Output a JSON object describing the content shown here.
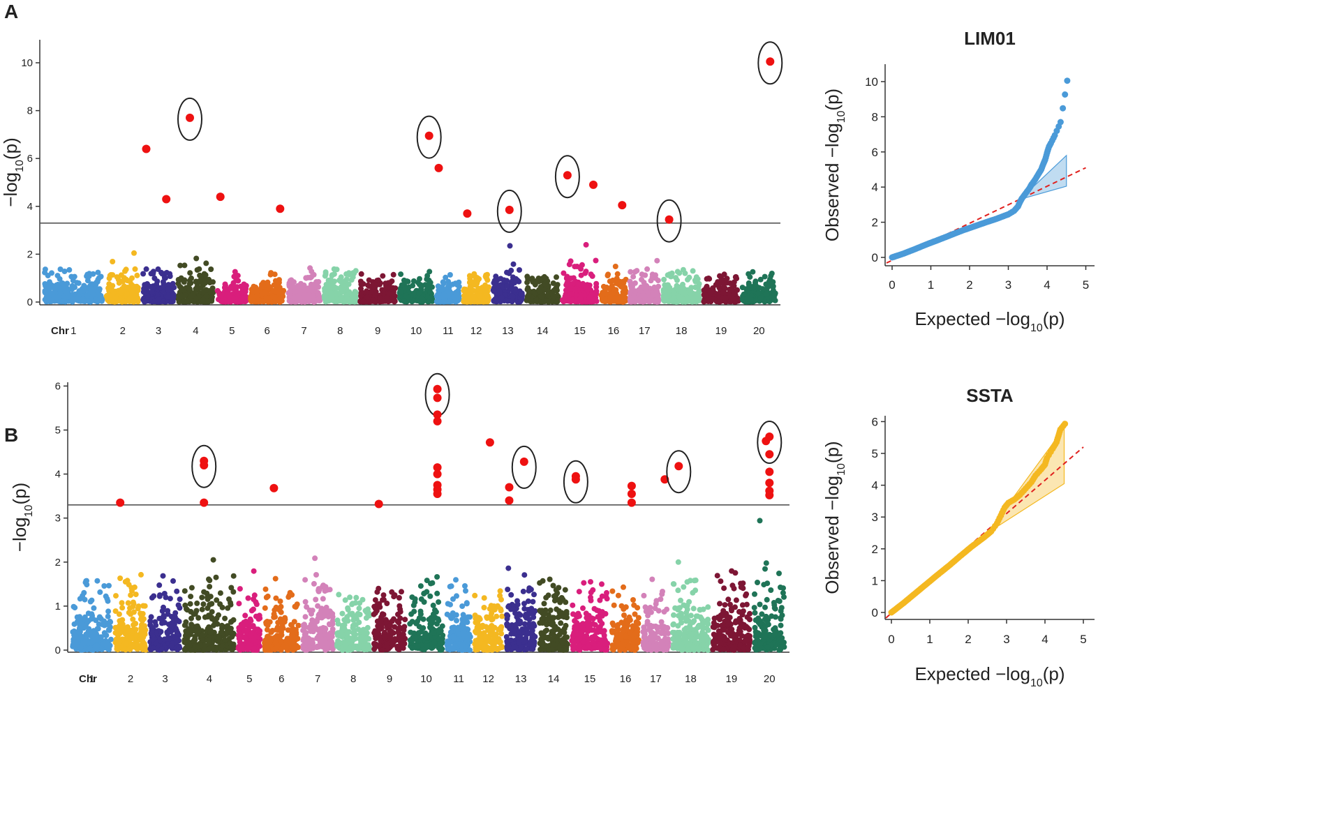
{
  "threshold": 3.3,
  "colors": {
    "chromosomes": [
      "#4a9ad8",
      "#f4b821",
      "#3b2f8f",
      "#424b24",
      "#d91e7c",
      "#e36c1a",
      "#d382b9",
      "#86d3a9",
      "#7d1634",
      "#1f7457"
    ],
    "signal": "#ee1111",
    "threshold_line": "#555555",
    "circle": "#222222",
    "qq_ref_line": "#e0201d"
  },
  "panels": [
    {
      "letter": "A",
      "ylabel": "−log10(p)",
      "chr_axis_label": "Chr",
      "chromosomes": [
        "1",
        "2",
        "3",
        "4",
        "5",
        "6",
        "7",
        "8",
        "9",
        "10",
        "11",
        "12",
        "13",
        "14",
        "15",
        "16",
        "17",
        "18",
        "19",
        "20"
      ],
      "y_ticks": [
        "0",
        "2",
        "4",
        "6",
        "8",
        "10"
      ],
      "ylim": [
        0,
        11
      ],
      "significant": [
        {
          "chr": 3,
          "pos": 0.15,
          "value": 6.4,
          "circled": false
        },
        {
          "chr": 3,
          "pos": 0.72,
          "value": 4.3,
          "circled": false
        },
        {
          "chr": 4,
          "pos": 0.35,
          "value": 7.7,
          "circled": true
        },
        {
          "chr": 5,
          "pos": 0.15,
          "value": 4.4,
          "circled": false
        },
        {
          "chr": 6,
          "pos": 0.85,
          "value": 3.9,
          "circled": false
        },
        {
          "chr": 10,
          "pos": 0.85,
          "value": 6.95,
          "circled": true
        },
        {
          "chr": 11,
          "pos": 0.15,
          "value": 5.6,
          "circled": false
        },
        {
          "chr": 12,
          "pos": 0.2,
          "value": 3.7,
          "circled": false
        },
        {
          "chr": 13,
          "pos": 0.55,
          "value": 3.85,
          "circled": true
        },
        {
          "chr": 15,
          "pos": 0.18,
          "value": 5.3,
          "circled": true
        },
        {
          "chr": 15,
          "pos": 0.85,
          "value": 4.9,
          "circled": false
        },
        {
          "chr": 16,
          "pos": 0.8,
          "value": 4.05,
          "circled": false
        },
        {
          "chr": 18,
          "pos": 0.2,
          "value": 3.45,
          "circled": true
        },
        {
          "chr": 20,
          "pos": 0.8,
          "value": 10.05,
          "circled": true
        }
      ],
      "qq": {
        "title": "LIM01",
        "xlabel": "Expected  −log10(p)",
        "ylabel": "Observed  −log10(p)",
        "color": "#4a9ad8",
        "x_ticks": [
          "0",
          "1",
          "2",
          "3",
          "4",
          "5"
        ],
        "y_ticks": [
          "0",
          "2",
          "4",
          "6",
          "8",
          "10"
        ],
        "xlim": [
          0,
          5
        ],
        "ylim": [
          0,
          11
        ],
        "ref_line": {
          "x0": 0,
          "y0": 0,
          "x1": 5,
          "y1": 5.1
        },
        "band": {
          "x_start": 3.3,
          "x_end": 4.5,
          "lower_end": 4.05,
          "upper_end": 5.8
        },
        "points": [
          [
            0.0,
            0.0
          ],
          [
            0.3,
            0.22
          ],
          [
            0.6,
            0.48
          ],
          [
            0.9,
            0.75
          ],
          [
            1.2,
            1.0
          ],
          [
            1.5,
            1.26
          ],
          [
            1.8,
            1.52
          ],
          [
            2.1,
            1.75
          ],
          [
            2.4,
            1.98
          ],
          [
            2.7,
            2.2
          ],
          [
            3.0,
            2.45
          ],
          [
            3.15,
            2.65
          ],
          [
            3.25,
            2.9
          ],
          [
            3.3,
            3.15
          ],
          [
            3.35,
            3.35
          ],
          [
            3.45,
            3.65
          ],
          [
            3.55,
            3.95
          ],
          [
            3.6,
            4.15
          ],
          [
            3.7,
            4.45
          ],
          [
            3.78,
            4.75
          ],
          [
            3.85,
            5.0
          ],
          [
            3.9,
            5.3
          ],
          [
            3.95,
            5.55
          ],
          [
            4.0,
            5.95
          ],
          [
            4.05,
            6.3
          ],
          [
            4.1,
            6.5
          ],
          [
            4.2,
            6.95
          ],
          [
            4.35,
            7.7
          ],
          [
            4.52,
            10.05
          ]
        ]
      }
    },
    {
      "letter": "B",
      "ylabel": "−log10(p)",
      "chr_axis_label": "Chr",
      "chromosomes": [
        "1",
        "2",
        "3",
        "4",
        "5",
        "6",
        "7",
        "8",
        "9",
        "10",
        "11",
        "12",
        "13",
        "14",
        "15",
        "16",
        "17",
        "18",
        "19",
        "20"
      ],
      "y_ticks": [
        "0",
        "1",
        "2",
        "3",
        "4",
        "5",
        "6"
      ],
      "ylim": [
        0,
        6.3
      ],
      "significant": [
        {
          "chr": 2,
          "pos": 0.2,
          "value": 3.35,
          "circled": false
        },
        {
          "chr": 4,
          "pos": 0.4,
          "value": 4.3,
          "circled": true
        },
        {
          "chr": 4,
          "pos": 0.4,
          "value": 4.2,
          "circled": false
        },
        {
          "chr": 4,
          "pos": 0.4,
          "value": 3.35,
          "circled": false
        },
        {
          "chr": 6,
          "pos": 0.3,
          "value": 3.68,
          "circled": false
        },
        {
          "chr": 9,
          "pos": 0.2,
          "value": 3.32,
          "circled": false
        },
        {
          "chr": 10,
          "pos": 0.8,
          "value": 5.93,
          "circled": true
        },
        {
          "chr": 10,
          "pos": 0.8,
          "value": 5.73,
          "circled": false
        },
        {
          "chr": 10,
          "pos": 0.8,
          "value": 5.35,
          "circled": false
        },
        {
          "chr": 10,
          "pos": 0.8,
          "value": 5.2,
          "circled": false
        },
        {
          "chr": 10,
          "pos": 0.8,
          "value": 4.15,
          "circled": false
        },
        {
          "chr": 10,
          "pos": 0.8,
          "value": 4.0,
          "circled": false
        },
        {
          "chr": 10,
          "pos": 0.8,
          "value": 3.75,
          "circled": false
        },
        {
          "chr": 10,
          "pos": 0.8,
          "value": 3.65,
          "circled": false
        },
        {
          "chr": 10,
          "pos": 0.8,
          "value": 3.55,
          "circled": false
        },
        {
          "chr": 12,
          "pos": 0.55,
          "value": 4.72,
          "circled": false
        },
        {
          "chr": 13,
          "pos": 0.15,
          "value": 3.7,
          "circled": false
        },
        {
          "chr": 13,
          "pos": 0.15,
          "value": 3.4,
          "circled": false
        },
        {
          "chr": 13,
          "pos": 0.6,
          "value": 4.28,
          "circled": true
        },
        {
          "chr": 15,
          "pos": 0.15,
          "value": 3.95,
          "circled": true
        },
        {
          "chr": 15,
          "pos": 0.15,
          "value": 3.88,
          "circled": false
        },
        {
          "chr": 16,
          "pos": 0.7,
          "value": 3.73,
          "circled": false
        },
        {
          "chr": 16,
          "pos": 0.7,
          "value": 3.55,
          "circled": false
        },
        {
          "chr": 16,
          "pos": 0.7,
          "value": 3.35,
          "circled": false
        },
        {
          "chr": 17,
          "pos": 0.8,
          "value": 3.88,
          "circled": false
        },
        {
          "chr": 18,
          "pos": 0.2,
          "value": 4.18,
          "circled": true
        },
        {
          "chr": 20,
          "pos": 0.5,
          "value": 4.85,
          "circled": true
        },
        {
          "chr": 20,
          "pos": 0.4,
          "value": 4.75,
          "circled": false
        },
        {
          "chr": 20,
          "pos": 0.5,
          "value": 4.45,
          "circled": false
        },
        {
          "chr": 20,
          "pos": 0.5,
          "value": 4.05,
          "circled": false
        },
        {
          "chr": 20,
          "pos": 0.5,
          "value": 3.8,
          "circled": false
        },
        {
          "chr": 20,
          "pos": 0.5,
          "value": 3.62,
          "circled": false
        },
        {
          "chr": 20,
          "pos": 0.5,
          "value": 3.52,
          "circled": false
        }
      ],
      "qq": {
        "title": "SSTA",
        "xlabel": "Expected  −log10(p)",
        "ylabel": "Observed  −log10(p)",
        "color": "#f4b821",
        "x_ticks": [
          "0",
          "1",
          "2",
          "3",
          "4",
          "5"
        ],
        "y_ticks": [
          "0",
          "1",
          "2",
          "3",
          "4",
          "5",
          "6"
        ],
        "xlim": [
          0,
          5
        ],
        "ylim": [
          0,
          6.3
        ],
        "ref_line": {
          "x0": 0,
          "y0": 0,
          "x1": 5,
          "y1": 5.2
        },
        "band": {
          "x_start": 2.5,
          "x_end": 4.5,
          "lower_end": 4.05,
          "upper_end": 5.8
        },
        "points": [
          [
            0.0,
            0.0
          ],
          [
            0.3,
            0.28
          ],
          [
            0.6,
            0.58
          ],
          [
            0.9,
            0.88
          ],
          [
            1.2,
            1.18
          ],
          [
            1.5,
            1.47
          ],
          [
            1.8,
            1.78
          ],
          [
            2.1,
            2.08
          ],
          [
            2.4,
            2.35
          ],
          [
            2.6,
            2.55
          ],
          [
            2.75,
            2.8
          ],
          [
            2.85,
            3.05
          ],
          [
            2.95,
            3.3
          ],
          [
            3.05,
            3.45
          ],
          [
            3.2,
            3.55
          ],
          [
            3.35,
            3.7
          ],
          [
            3.5,
            3.9
          ],
          [
            3.65,
            4.1
          ],
          [
            3.75,
            4.3
          ],
          [
            3.9,
            4.5
          ],
          [
            4.0,
            4.65
          ],
          [
            4.05,
            4.85
          ],
          [
            4.2,
            5.15
          ],
          [
            4.3,
            5.35
          ],
          [
            4.35,
            5.55
          ],
          [
            4.4,
            5.75
          ],
          [
            4.52,
            5.93
          ]
        ]
      }
    }
  ]
}
